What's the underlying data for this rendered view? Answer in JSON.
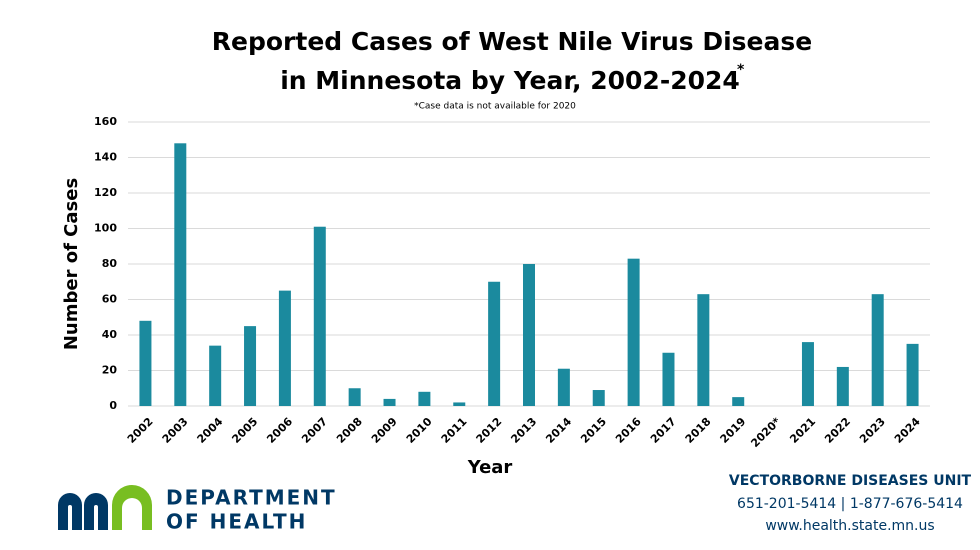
{
  "chart_data": {
    "type": "bar",
    "title": [
      "Reported Cases of West Nile Virus Disease",
      "in Minnesota by Year, 2002-2024"
    ],
    "title_mark": "*",
    "subtitle": "*Case data is not available for 2020",
    "x_label": "Year",
    "y_label": "Number of Cases",
    "categories": [
      "2002",
      "2003",
      "2004",
      "2005",
      "2006",
      "2007",
      "2008",
      "2009",
      "2010",
      "2011",
      "2012",
      "2013",
      "2014",
      "2015",
      "2016",
      "2017",
      "2018",
      "2019",
      "2020*",
      "2021",
      "2022",
      "2023",
      "2024"
    ],
    "values": [
      48,
      148,
      34,
      45,
      65,
      101,
      10,
      4,
      8,
      2,
      70,
      80,
      21,
      9,
      83,
      30,
      63,
      5,
      null,
      36,
      22,
      63,
      35
    ],
    "color": "#1b8a9e",
    "ylim": [
      0,
      160
    ],
    "yticks": [
      0,
      20,
      40,
      60,
      80,
      100,
      120,
      140,
      160
    ],
    "grid": true
  },
  "footer": {
    "org": [
      "DEPARTMENT",
      "OF HEALTH"
    ],
    "contact": [
      "VECTORBORNE DISEASES UNIT",
      "651-201-5414 | 1-877-676-5414",
      "www.health.state.mn.us"
    ]
  }
}
